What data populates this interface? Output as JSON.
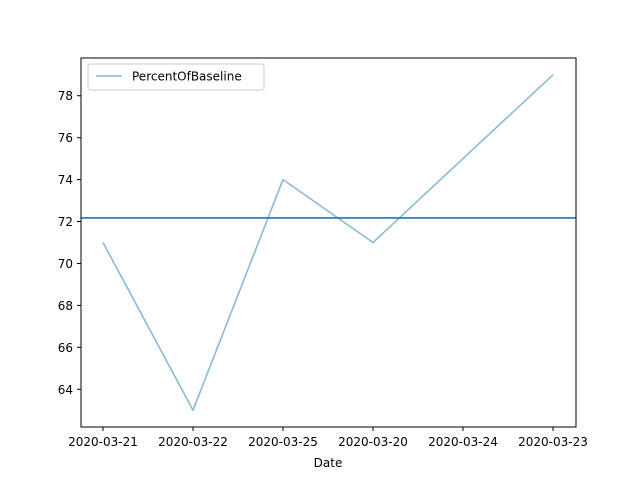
{
  "chart_data": {
    "type": "line",
    "x": [
      "2020-03-21",
      "2020-03-22",
      "2020-03-25",
      "2020-03-20",
      "2020-03-24",
      "2020-03-23"
    ],
    "series": [
      {
        "name": "PercentOfBaseline",
        "values": [
          71,
          63,
          74,
          71,
          75,
          79
        ],
        "color": "#8ab9d8"
      }
    ],
    "reference_line": {
      "y": 72.17,
      "color": "#1f77b4"
    },
    "xlabel": "Date",
    "ylabel": "",
    "ylim": [
      62.2,
      79.8
    ],
    "yticks": [
      64,
      66,
      68,
      70,
      72,
      74,
      76,
      78
    ],
    "legend": "top-left",
    "grid": false
  }
}
